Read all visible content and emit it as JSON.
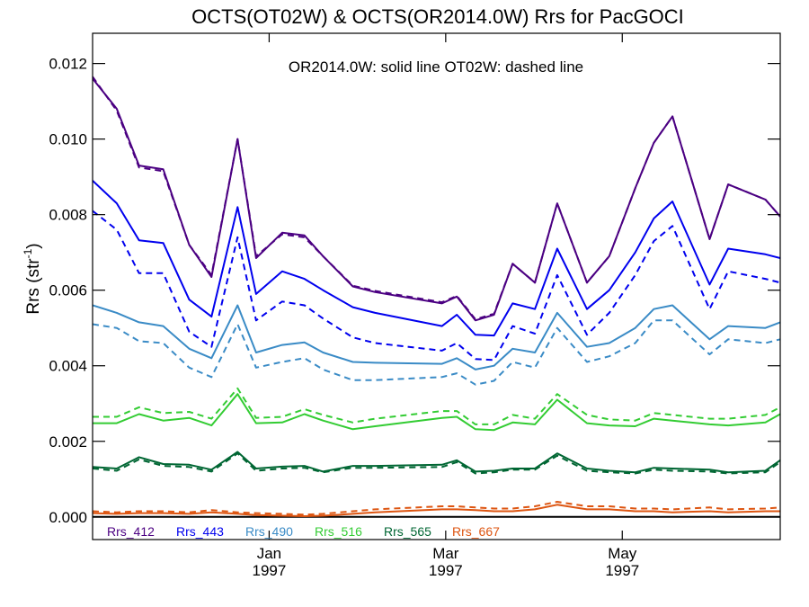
{
  "chart_data": {
    "type": "line",
    "title": "OCTS(OT02W) & OCTS(OR2014.0W)  Rrs for PacGOCI",
    "ylabel": "Rrs (str",
    "ylabel_sup": "-1",
    "ylabel_close": ")",
    "annotation": "OR2014.0W: solid line   OT02W: dashed line",
    "ylim": [
      -0.0006,
      0.0128
    ],
    "yticks": [
      0.0,
      0.002,
      0.004,
      0.006,
      0.008,
      0.01,
      0.012
    ],
    "ytick_labels": [
      "0.000",
      "0.002",
      "0.004",
      "0.006",
      "0.008",
      "0.010",
      "0.012"
    ],
    "xlim": [
      0,
      37
    ],
    "xticks": [
      {
        "x": 9.5,
        "month": "Jan",
        "year": "1997"
      },
      {
        "x": 19.0,
        "month": "Mar",
        "year": "1997"
      },
      {
        "x": 28.5,
        "month": "May",
        "year": "1997"
      }
    ],
    "x": [
      0,
      1.3,
      2.5,
      3.8,
      5.2,
      6.4,
      7.8,
      8.8,
      10.2,
      11.4,
      12.4,
      14,
      15.2,
      18.8,
      19.6,
      20.6,
      21.6,
      22.6,
      23.8,
      25,
      26.6,
      27.8,
      29.2,
      30.2,
      31.2,
      33.2,
      34.2,
      36.2,
      37
    ],
    "series": [
      {
        "name": "Rrs_412",
        "color": "#4B0082",
        "solid": [
          0.0116,
          0.0108,
          0.0093,
          0.0092,
          0.0072,
          0.00635,
          0.01,
          0.00685,
          0.00752,
          0.00745,
          0.0069,
          0.0061,
          0.00595,
          0.00565,
          0.00583,
          0.0052,
          0.00535,
          0.0067,
          0.0062,
          0.0083,
          0.0062,
          0.0069,
          0.0087,
          0.0099,
          0.0106,
          0.00735,
          0.0088,
          0.0084,
          0.00795
        ],
        "dashed": [
          0.01165,
          0.01075,
          0.00925,
          0.00915,
          0.0072,
          0.0064,
          0.01,
          0.0069,
          0.00748,
          0.0074,
          0.0069,
          0.00612,
          0.00598,
          0.00568,
          0.00585,
          0.00523,
          0.00538,
          0.0067,
          0.0062,
          0.0083,
          0.0062,
          0.0069,
          0.0087,
          0.0099,
          0.0106,
          0.00735,
          0.0088,
          0.0084,
          0.00795
        ]
      },
      {
        "name": "Rrs_443",
        "color": "#0000EE",
        "solid": [
          0.0089,
          0.0083,
          0.00732,
          0.00725,
          0.00575,
          0.0053,
          0.0082,
          0.0059,
          0.0065,
          0.0063,
          0.006,
          0.00555,
          0.0054,
          0.00505,
          0.00535,
          0.00482,
          0.0048,
          0.00565,
          0.0055,
          0.0071,
          0.0055,
          0.006,
          0.007,
          0.0079,
          0.00835,
          0.00615,
          0.0071,
          0.00695,
          0.00685
        ],
        "dashed": [
          0.0081,
          0.0076,
          0.00645,
          0.00645,
          0.0049,
          0.0045,
          0.0074,
          0.0052,
          0.0057,
          0.0056,
          0.00525,
          0.00475,
          0.0046,
          0.0044,
          0.0046,
          0.00418,
          0.00415,
          0.00505,
          0.00485,
          0.0064,
          0.00482,
          0.0054,
          0.0064,
          0.0073,
          0.0077,
          0.0055,
          0.0065,
          0.0063,
          0.0062
        ]
      },
      {
        "name": "Rrs_490",
        "color": "#3A8BC6",
        "solid": [
          0.0056,
          0.0054,
          0.00515,
          0.00505,
          0.00445,
          0.0042,
          0.0056,
          0.00435,
          0.00455,
          0.00462,
          0.00435,
          0.0041,
          0.00408,
          0.00405,
          0.0042,
          0.0039,
          0.004,
          0.00445,
          0.00435,
          0.0054,
          0.0045,
          0.0046,
          0.005,
          0.0055,
          0.0056,
          0.0047,
          0.00505,
          0.005,
          0.00515
        ],
        "dashed": [
          0.0051,
          0.005,
          0.00465,
          0.0046,
          0.00395,
          0.0037,
          0.0051,
          0.00395,
          0.0041,
          0.0042,
          0.0039,
          0.00362,
          0.00362,
          0.0037,
          0.0038,
          0.0035,
          0.0036,
          0.0041,
          0.00395,
          0.005,
          0.0041,
          0.00425,
          0.0046,
          0.0052,
          0.0052,
          0.0043,
          0.0047,
          0.0046,
          0.0047
        ]
      },
      {
        "name": "Rrs_516",
        "color": "#33CC33",
        "solid": [
          0.00248,
          0.00248,
          0.00272,
          0.00255,
          0.00262,
          0.00242,
          0.00325,
          0.00248,
          0.0025,
          0.00272,
          0.00255,
          0.00232,
          0.0024,
          0.00262,
          0.00265,
          0.00232,
          0.0023,
          0.0025,
          0.00245,
          0.0031,
          0.00248,
          0.00242,
          0.0024,
          0.0026,
          0.00255,
          0.00245,
          0.00242,
          0.0025,
          0.00272
        ],
        "dashed": [
          0.00265,
          0.00265,
          0.0029,
          0.00275,
          0.00278,
          0.0026,
          0.0034,
          0.00262,
          0.00265,
          0.00285,
          0.0027,
          0.0025,
          0.0026,
          0.0028,
          0.0028,
          0.00245,
          0.00245,
          0.0027,
          0.0026,
          0.00325,
          0.0027,
          0.00258,
          0.00255,
          0.00275,
          0.0027,
          0.0026,
          0.0026,
          0.0027,
          0.0029
        ]
      },
      {
        "name": "Rrs_565",
        "color": "#006633",
        "solid": [
          0.00132,
          0.00128,
          0.00158,
          0.0014,
          0.00138,
          0.00125,
          0.00172,
          0.00128,
          0.00133,
          0.00135,
          0.0012,
          0.00135,
          0.00135,
          0.00138,
          0.0015,
          0.0012,
          0.00122,
          0.00128,
          0.00128,
          0.00168,
          0.00128,
          0.00122,
          0.00118,
          0.0013,
          0.00128,
          0.00125,
          0.00118,
          0.00122,
          0.0015
        ],
        "dashed": [
          0.00128,
          0.00122,
          0.00152,
          0.00135,
          0.00132,
          0.0012,
          0.00168,
          0.00122,
          0.00128,
          0.0013,
          0.00118,
          0.0013,
          0.0013,
          0.00132,
          0.00145,
          0.00115,
          0.00118,
          0.00125,
          0.00125,
          0.00162,
          0.00122,
          0.00118,
          0.00115,
          0.00125,
          0.00122,
          0.0012,
          0.00115,
          0.00118,
          0.00145
        ]
      },
      {
        "name": "Rrs_667",
        "color": "#DD5511",
        "solid": [
          0.0001,
          8e-05,
          0.0001,
          0.0001,
          8e-05,
          0.00012,
          8e-05,
          5e-05,
          3e-05,
          2e-05,
          3e-05,
          8e-05,
          0.00012,
          0.0002,
          0.0002,
          0.00018,
          0.00015,
          0.00015,
          0.0002,
          0.00032,
          0.0002,
          0.0002,
          0.00015,
          0.00015,
          0.00012,
          0.00015,
          0.00012,
          0.00015,
          0.00015
        ],
        "dashed": [
          0.00015,
          0.00012,
          0.00015,
          0.00015,
          0.00012,
          0.00018,
          0.00012,
          0.0001,
          8e-05,
          6e-05,
          8e-05,
          0.00015,
          0.0002,
          0.00028,
          0.00028,
          0.00025,
          0.00022,
          0.00022,
          0.00028,
          0.0004,
          0.00028,
          0.00028,
          0.00022,
          0.00022,
          0.0002,
          0.00025,
          0.0002,
          0.00022,
          0.00025
        ]
      }
    ],
    "grid": false,
    "legend_position": "bottom-left"
  }
}
